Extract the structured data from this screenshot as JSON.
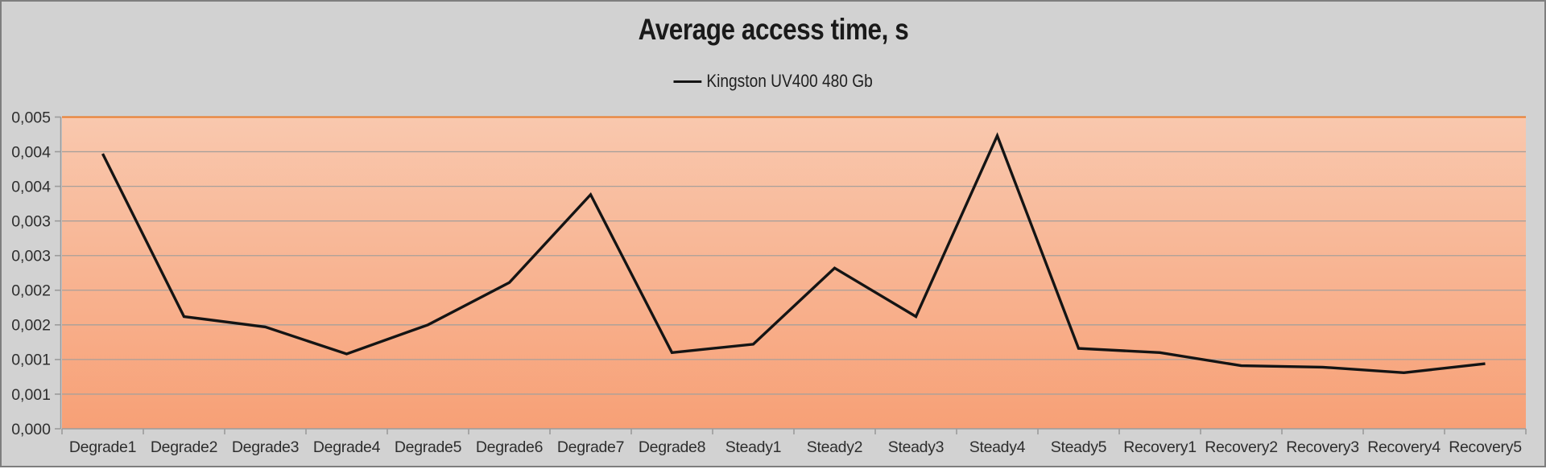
{
  "chart_data": {
    "type": "line",
    "title": "Average access time, s",
    "categories": [
      "Degrade1",
      "Degrade2",
      "Degrade3",
      "Degrade4",
      "Degrade5",
      "Degrade6",
      "Degrade7",
      "Degrade8",
      "Steady1",
      "Steady2",
      "Steady3",
      "Steady4",
      "Steady5",
      "Recovery1",
      "Recovery2",
      "Recovery3",
      "Recovery4",
      "Recovery5"
    ],
    "series": [
      {
        "name": "Kingston UV400 480 Gb",
        "color": "#141414",
        "values": [
          0.00397,
          0.00162,
          0.00147,
          0.00108,
          0.0015,
          0.00211,
          0.00338,
          0.0011,
          0.00122,
          0.00232,
          0.00162,
          0.00423,
          0.00116,
          0.0011,
          0.00091,
          0.00089,
          0.00081,
          0.00094
        ]
      }
    ],
    "y_axis": {
      "min": 0,
      "max": 0.0045,
      "step": 0.0005,
      "tick_labels_top_to_bottom": [
        "0,005",
        "0,004",
        "0,004",
        "0,003",
        "0,003",
        "0,002",
        "0,002",
        "0,001",
        "0,001",
        "0,000"
      ],
      "decimal_separator": ","
    },
    "x_axis": {
      "label_rotation": 0
    },
    "legend_position": "top",
    "grid": true,
    "colors": {
      "canvas_bg": "#d2d2d2",
      "canvas_border": "#7e7e7e",
      "plot_bg_top": "#f9c8ae",
      "plot_bg_bottom": "#f7a076",
      "gridline": "#a9a09a",
      "plot_top_border": "#e87d2e",
      "axis_line": "#9b9b9b",
      "tick": "#9b9b9b",
      "label_text": "#2e2e2e",
      "series_line": "#141414"
    }
  }
}
